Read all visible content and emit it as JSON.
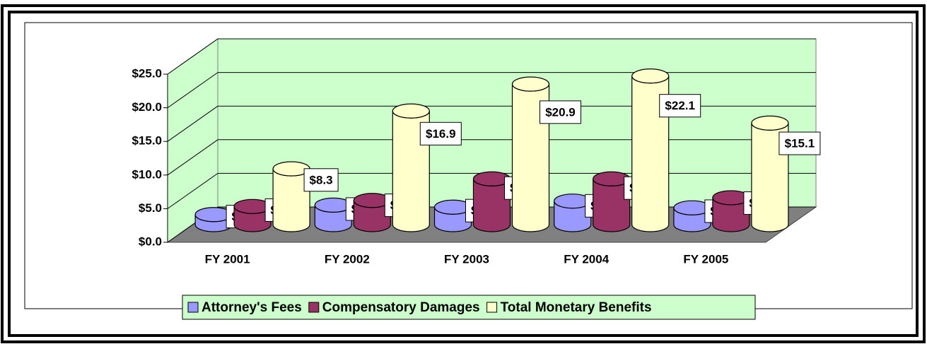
{
  "chart_data": {
    "type": "bar3d",
    "categories": [
      "FY 2001",
      "FY 2002",
      "FY 2003",
      "FY 2004",
      "FY 2005"
    ],
    "series": [
      {
        "name": "Attorney's Fees",
        "color": "#9999ff",
        "values": [
          1.5,
          2.9,
          2.6,
          3.5,
          2.5
        ],
        "value_labels": [
          "$1.5",
          "$2.9",
          "$2.6",
          "$3.5",
          "$2.5"
        ]
      },
      {
        "name": "Compensatory Damages",
        "color": "#993366",
        "values": [
          2.7,
          3.6,
          6.8,
          6.8,
          4.0
        ],
        "value_labels": [
          "$2.7",
          "$3.6",
          "$6.8",
          "$6.8",
          "$4.0"
        ]
      },
      {
        "name": "Total Monetary Benefits",
        "color": "#ffffcc",
        "values": [
          8.3,
          16.9,
          20.9,
          22.1,
          15.1
        ],
        "value_labels": [
          "$8.3",
          "$16.9",
          "$20.9",
          "$22.1",
          "$15.1"
        ]
      }
    ],
    "ylim": [
      0,
      25
    ],
    "yticks": [
      {
        "value": 0,
        "label": "$0.0"
      },
      {
        "value": 5,
        "label": "$5.0"
      },
      {
        "value": 10,
        "label": "$10.0"
      },
      {
        "value": 15,
        "label": "$15.0"
      },
      {
        "value": 20,
        "label": "$20.0"
      },
      {
        "value": 25,
        "label": "$25.0"
      }
    ],
    "grid": true,
    "wall_color": "#ccffcc",
    "floor_color": "#808080",
    "legend": "bottom"
  }
}
